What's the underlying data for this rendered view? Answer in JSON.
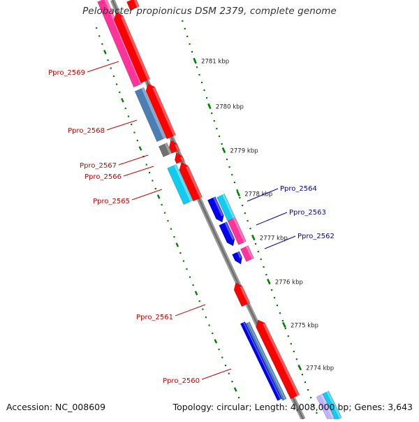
{
  "header": {
    "title": "Pelobacter propionicus DSM 2379, complete genome"
  },
  "footer": {
    "accession": "Accession: NC_008609",
    "topology": "Topology: circular; Length: 4,008,000 bp; Genes: 3,643"
  },
  "colors": {
    "backbone": "#8c8c8c",
    "ring": "#008000",
    "left_label": "#cc0000",
    "right_label": "#0000aa",
    "red": "#ff0000",
    "pink": "#ff3399",
    "steelblue": "#4a7fb5",
    "blue": "#0000ee",
    "cyan": "#11ccee",
    "gray": "#707070"
  },
  "scale_ticks": [
    {
      "label": "2781 kbp"
    },
    {
      "label": "2780 kbp"
    },
    {
      "label": "2779 kbp"
    },
    {
      "label": "2778 kbp"
    },
    {
      "label": "2777 kbp"
    },
    {
      "label": "2776 kbp"
    },
    {
      "label": "2775 kbp"
    },
    {
      "label": "2774 kbp"
    }
  ],
  "gene_labels_left": [
    {
      "name": "Ppro_2569"
    },
    {
      "name": "Ppro_2568"
    },
    {
      "name": "Ppro_2567"
    },
    {
      "name": "Ppro_2566"
    },
    {
      "name": "Ppro_2565"
    },
    {
      "name": "Ppro_2561"
    },
    {
      "name": "Ppro_2560"
    }
  ],
  "gene_labels_right": [
    {
      "name": "Ppro_2564"
    },
    {
      "name": "Ppro_2563"
    },
    {
      "name": "Ppro_2562"
    }
  ]
}
